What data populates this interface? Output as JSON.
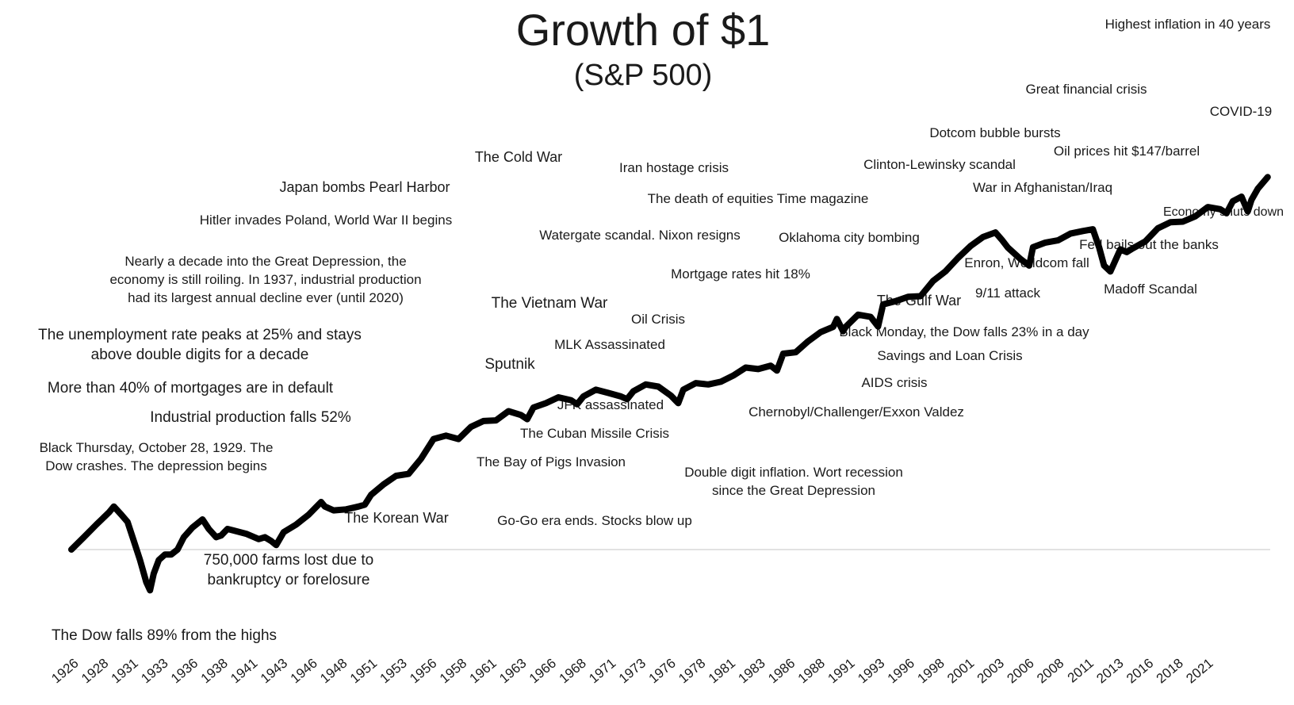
{
  "chart_data": {
    "type": "line",
    "title": "Growth of $1",
    "subtitle": "(S&P 500)",
    "xlabel": "",
    "ylabel": "",
    "xlim": [
      1926,
      2022
    ],
    "grid": false,
    "legend": "none",
    "line_color": "#000000",
    "x_tick_labels": [
      "1926",
      "1928",
      "1931",
      "1933",
      "1936",
      "1938",
      "1941",
      "1943",
      "1946",
      "1948",
      "1951",
      "1953",
      "1956",
      "1958",
      "1961",
      "1963",
      "1966",
      "1968",
      "1971",
      "1973",
      "1976",
      "1978",
      "1981",
      "1983",
      "1986",
      "1988",
      "1991",
      "1993",
      "1996",
      "1998",
      "2001",
      "2003",
      "2006",
      "2008",
      "2011",
      "2013",
      "2016",
      "2018",
      "2021"
    ],
    "series": [
      {
        "name": "",
        "x": [
          1926.0,
          1927.0,
          1928.0,
          1929.0,
          1929.4,
          1930.0,
          1930.5,
          1931.0,
          1931.5,
          1932.0,
          1932.3,
          1932.6,
          1933.0,
          1933.5,
          1934.0,
          1934.5,
          1935.0,
          1935.7,
          1936.5,
          1937.0,
          1937.6,
          1938.0,
          1938.5,
          1939.0,
          1940.0,
          1941.0,
          1941.5,
          1942.0,
          1942.4,
          1943.0,
          1944.0,
          1945.0,
          1946.0,
          1946.3,
          1947.0,
          1948.0,
          1949.0,
          1949.5,
          1950.0,
          1951.0,
          1952.0,
          1953.0,
          1954.0,
          1955.0,
          1956.0,
          1957.0,
          1958.0,
          1959.0,
          1960.0,
          1961.0,
          1962.0,
          1962.5,
          1963.0,
          1964.0,
          1965.0,
          1966.0,
          1966.5,
          1967.0,
          1968.0,
          1969.0,
          1970.0,
          1970.5,
          1971.0,
          1972.0,
          1973.0,
          1974.0,
          1974.6,
          1975.0,
          1976.0,
          1977.0,
          1978.0,
          1979.0,
          1980.0,
          1981.0,
          1982.0,
          1982.5,
          1983.0,
          1984.0,
          1985.0,
          1986.0,
          1987.0,
          1987.3,
          1987.8,
          1988.0,
          1989.0,
          1990.0,
          1990.6,
          1991.0,
          1992.0,
          1993.0,
          1994.0,
          1995.0,
          1996.0,
          1997.0,
          1998.0,
          1999.0,
          2000.0,
          2000.5,
          2001.0,
          2002.0,
          2002.7,
          2003.0,
          2004.0,
          2005.0,
          2006.0,
          2007.0,
          2007.8,
          2008.3,
          2008.7,
          2009.2,
          2010.0,
          2010.5,
          2011.0,
          2012.0,
          2013.0,
          2014.0,
          2015.0,
          2016.0,
          2017.0,
          2018.0,
          2018.5,
          2019.0,
          2019.7,
          2020.2,
          2020.5,
          2021.0,
          2021.8
        ],
        "y": [
          1.0,
          1.3,
          1.7,
          2.2,
          2.5,
          2.1,
          1.8,
          1.2,
          0.8,
          0.5,
          0.42,
          0.6,
          0.8,
          0.9,
          0.9,
          1.0,
          1.3,
          1.6,
          1.9,
          1.55,
          1.3,
          1.35,
          1.55,
          1.5,
          1.4,
          1.25,
          1.3,
          1.2,
          1.1,
          1.45,
          1.7,
          2.1,
          2.75,
          2.5,
          2.3,
          2.35,
          2.5,
          2.6,
          3.2,
          4.0,
          4.8,
          5.0,
          6.9,
          10.5,
          11.3,
          10.5,
          13.6,
          15.4,
          15.6,
          19.0,
          17.5,
          16.0,
          20.5,
          22.5,
          25.5,
          24.0,
          22.0,
          26.0,
          30.0,
          28.0,
          26.0,
          24.5,
          29.0,
          33.5,
          32.0,
          26.5,
          22.5,
          30.0,
          34.5,
          33.5,
          35.5,
          40.5,
          48.0,
          46.5,
          50.0,
          45.0,
          64.5,
          66.5,
          84.0,
          102.0,
          114.0,
          135.0,
          104.0,
          114.0,
          148.0,
          141.0,
          115.0,
          184.0,
          197.0,
          216.0,
          219.0,
          303.0,
          372.0,
          495.0,
          636.0,
          771.0,
          850.0,
          730.0,
          614.0,
          483.0,
          420.0,
          620.0,
          685.0,
          718.0,
          829.0,
          876.0,
          910.0,
          620.0,
          420.0,
          370.0,
          594.0,
          560.0,
          607.0,
          703.0,
          929.0,
          1055.0,
          1070.0,
          1198.0,
          1459.0,
          1395.0,
          1280.0,
          1650.0,
          1820.0,
          1330.0,
          1700.0,
          2150.0,
          2760.0
        ]
      }
    ],
    "annotations": [
      "Highest inflation in 40 years",
      "Great financial crisis",
      "COVID-19",
      "Dotcom bubble bursts",
      "Oil prices hit $147/barrel",
      "The Cold War",
      "Iran hostage crisis",
      "Clinton-Lewinsky scandal",
      "Japan bombs Pearl Harbor",
      "War in Afghanistan/Iraq",
      "The death of equities Time magazine",
      "Hitler invades Poland, World War II begins",
      "Economy shuts down",
      "Watergate scandal. Nixon resigns",
      "Oklahoma city bombing",
      "Fed bails out the banks",
      "Nearly a decade into the Great Depression, the",
      "Enron, Worldcom fall",
      "economy is still roiling. In 1937, industrial production",
      "Mortgage rates hit 18%",
      "had its largest annual decline ever (until 2020)",
      "Madoff Scandal",
      "9/11 attack",
      "The Gulf War",
      "The Vietnam War",
      "Oil Crisis",
      "Black Monday, the Dow falls 23% in a day",
      "The unemployment rate peaks at 25% and stays",
      "MLK Assassinated",
      "above double digits for a decade",
      "Savings and Loan Crisis",
      "Sputnik",
      "AIDS crisis",
      "More than 40% of mortgages are in default",
      "JFK assassinated",
      "Chernobyl/Challenger/Exxon Valdez",
      "Industrial production falls 52%",
      "The Cuban Missile Crisis",
      "Black Thursday, October 28, 1929. The",
      "Dow crashes. The depression begins",
      "The Bay of Pigs Invasion",
      "Double digit inflation. Wort recession",
      "since the Great Depression",
      "The Korean War",
      "Go-Go era ends. Stocks blow up",
      "750,000 farms lost due to",
      "bankruptcy or forelosure",
      "The Dow falls 89% from the highs"
    ]
  }
}
